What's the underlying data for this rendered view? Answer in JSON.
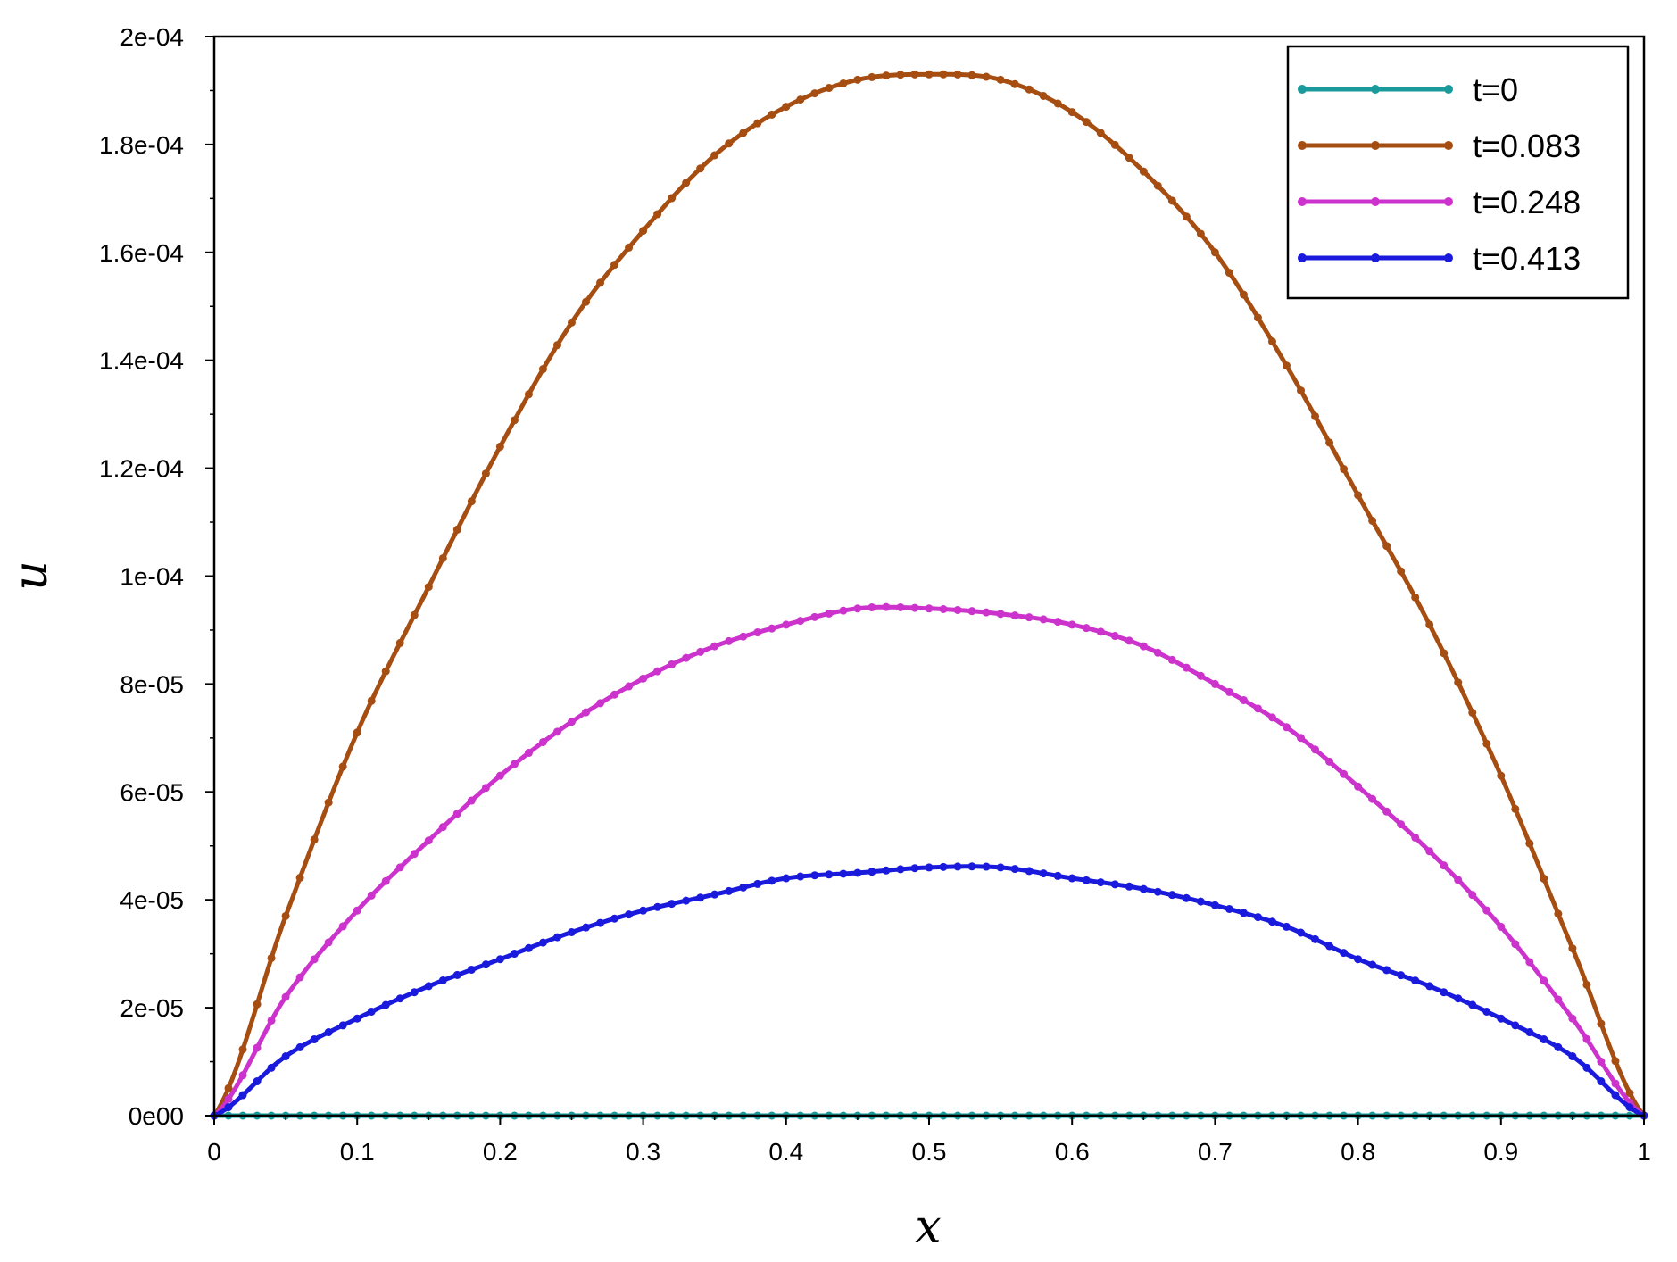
{
  "chart_data": {
    "type": "line",
    "title": "",
    "xlabel": "x",
    "ylabel": "u",
    "xlim": [
      0,
      1
    ],
    "ylim": [
      0,
      0.0002
    ],
    "grid": false,
    "legend_position": "top-right",
    "x_ticks": [
      0,
      0.1,
      0.2,
      0.3,
      0.4,
      0.5,
      0.6,
      0.7,
      0.8,
      0.9,
      1
    ],
    "x_tick_labels": [
      "0",
      "0.1",
      "0.2",
      "0.3",
      "0.4",
      "0.5",
      "0.6",
      "0.7",
      "0.8",
      "0.9",
      "1"
    ],
    "y_ticks": [
      0,
      2e-05,
      4e-05,
      6e-05,
      8e-05,
      0.0001,
      0.00012,
      0.00014,
      0.00016,
      0.00018,
      0.0002
    ],
    "y_tick_labels": [
      "0e00",
      "2e-05",
      "4e-05",
      "6e-05",
      "8e-05",
      "1e-04",
      "1.2e-04",
      "1.4e-04",
      "1.6e-04",
      "1.8e-04",
      "2e-04"
    ],
    "x": [
      0,
      0.05,
      0.1,
      0.15,
      0.2,
      0.25,
      0.3,
      0.35,
      0.4,
      0.45,
      0.5,
      0.55,
      0.6,
      0.65,
      0.7,
      0.75,
      0.8,
      0.85,
      0.9,
      0.95,
      1
    ],
    "series": [
      {
        "name": "t=0",
        "color": "#1a9a9a",
        "values": [
          0,
          0,
          0,
          0,
          0,
          0,
          0,
          0,
          0,
          0,
          0,
          0,
          0,
          0,
          0,
          0,
          0,
          0,
          0,
          0,
          0
        ]
      },
      {
        "name": "t=0.083",
        "color": "#a64d12",
        "values": [
          0,
          3.7e-05,
          7.1e-05,
          9.8e-05,
          0.000124,
          0.000147,
          0.000164,
          0.000178,
          0.000187,
          0.000192,
          0.000193,
          0.000192,
          0.000186,
          0.000175,
          0.00016,
          0.000139,
          0.000115,
          9.1e-05,
          6.3e-05,
          3.1e-05,
          0
        ]
      },
      {
        "name": "t=0.248",
        "color": "#cc33cc",
        "values": [
          0,
          2.2e-05,
          3.8e-05,
          5.1e-05,
          6.3e-05,
          7.3e-05,
          8.1e-05,
          8.7e-05,
          9.1e-05,
          9.4e-05,
          9.4e-05,
          9.3e-05,
          9.1e-05,
          8.7e-05,
          8e-05,
          7.2e-05,
          6.1e-05,
          4.9e-05,
          3.5e-05,
          1.8e-05,
          0
        ]
      },
      {
        "name": "t=0.413",
        "color": "#1a1add",
        "values": [
          0,
          1.1e-05,
          1.8e-05,
          2.4e-05,
          2.9e-05,
          3.4e-05,
          3.8e-05,
          4.1e-05,
          4.4e-05,
          4.5e-05,
          4.6e-05,
          4.6e-05,
          4.4e-05,
          4.2e-05,
          3.9e-05,
          3.5e-05,
          2.9e-05,
          2.4e-05,
          1.8e-05,
          1.1e-05,
          0
        ]
      }
    ]
  }
}
